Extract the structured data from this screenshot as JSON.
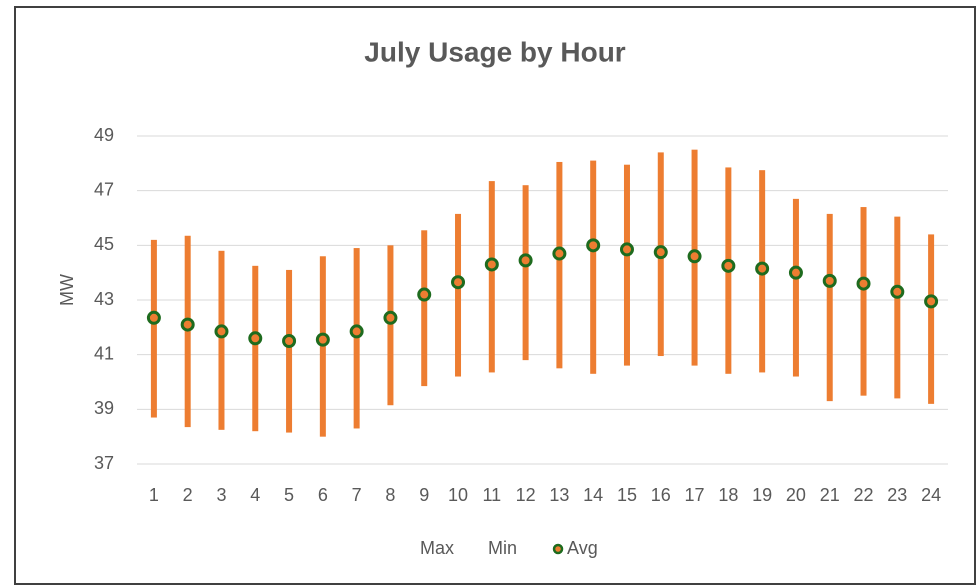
{
  "chart_data": {
    "type": "hilo",
    "title": "July Usage by Hour",
    "ylabel": "MW",
    "categories": [
      "1",
      "2",
      "3",
      "4",
      "5",
      "6",
      "7",
      "8",
      "9",
      "10",
      "11",
      "12",
      "13",
      "14",
      "15",
      "16",
      "17",
      "18",
      "19",
      "20",
      "21",
      "22",
      "23",
      "24"
    ],
    "series": [
      {
        "name": "Max",
        "color": "#ed7d31",
        "marker": false,
        "values": [
          45.2,
          45.35,
          44.8,
          44.25,
          44.1,
          44.6,
          44.9,
          45.0,
          45.55,
          46.15,
          47.35,
          47.2,
          48.05,
          48.1,
          47.95,
          48.4,
          48.5,
          47.85,
          47.75,
          46.7,
          46.15,
          46.4,
          46.05,
          45.4
        ]
      },
      {
        "name": "Min",
        "color": "#ed7d31",
        "marker": false,
        "values": [
          38.7,
          38.35,
          38.25,
          38.2,
          38.15,
          38.0,
          38.3,
          39.15,
          39.85,
          40.2,
          40.35,
          40.8,
          40.5,
          40.3,
          40.6,
          40.95,
          40.6,
          40.3,
          40.35,
          40.2,
          39.3,
          39.5,
          39.4,
          39.2
        ]
      },
      {
        "name": "Avg",
        "color": "#1e6b1e",
        "marker": true,
        "marker_fill": "#ed7d31",
        "values": [
          42.35,
          42.1,
          41.85,
          41.6,
          41.5,
          41.55,
          41.85,
          42.35,
          43.2,
          43.65,
          44.3,
          44.45,
          44.7,
          45.0,
          44.85,
          44.75,
          44.6,
          44.25,
          44.15,
          44.0,
          43.7,
          43.6,
          43.3,
          42.95
        ]
      }
    ],
    "ylim": [
      37,
      49
    ],
    "yticks": [
      37,
      39,
      41,
      43,
      45,
      47,
      49
    ],
    "grid": true,
    "legend": "bottom"
  }
}
